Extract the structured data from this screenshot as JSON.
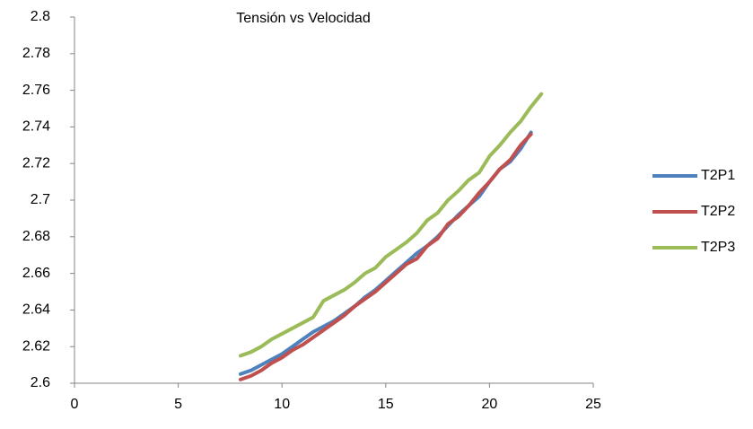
{
  "chart_data": {
    "type": "line",
    "title": "Tensión  vs Velocidad",
    "x": [
      8,
      8.5,
      9,
      9.5,
      10,
      10.5,
      11,
      11.5,
      12,
      12.5,
      13,
      13.5,
      14,
      14.5,
      15,
      15.5,
      16,
      16.5,
      17,
      17.5,
      18,
      18.5,
      19,
      19.5,
      20,
      20.5,
      21,
      21.5,
      22,
      22.5
    ],
    "series": [
      {
        "name": "T2P1",
        "color": "#4f81bd",
        "values": [
          2.605,
          2.607,
          2.61,
          2.613,
          2.616,
          2.62,
          2.624,
          2.628,
          2.631,
          2.634,
          2.638,
          2.642,
          2.647,
          2.651,
          2.656,
          2.661,
          2.666,
          2.671,
          2.675,
          2.68,
          2.686,
          2.692,
          2.697,
          2.702,
          2.71,
          2.717,
          2.721,
          2.728,
          2.737,
          null
        ]
      },
      {
        "name": "T2P2",
        "color": "#c0504d",
        "values": [
          2.602,
          2.604,
          2.607,
          2.611,
          2.614,
          2.618,
          2.621,
          2.625,
          2.629,
          2.633,
          2.637,
          2.642,
          2.646,
          2.65,
          2.655,
          2.66,
          2.665,
          2.668,
          2.675,
          2.679,
          2.687,
          2.691,
          2.697,
          2.704,
          2.71,
          2.717,
          2.722,
          2.73,
          2.736,
          null
        ]
      },
      {
        "name": "T2P3",
        "color": "#9bbb59",
        "values": [
          2.615,
          2.617,
          2.62,
          2.624,
          2.627,
          2.63,
          2.633,
          2.636,
          2.645,
          2.648,
          2.651,
          2.655,
          2.66,
          2.663,
          2.669,
          2.673,
          2.677,
          2.682,
          2.689,
          2.693,
          2.7,
          2.705,
          2.711,
          2.715,
          2.724,
          2.73,
          2.737,
          2.743,
          2.751,
          2.758
        ]
      }
    ],
    "xlim": [
      0,
      25
    ],
    "xticks": [
      0,
      5,
      10,
      15,
      20,
      25
    ],
    "ylim": [
      2.6,
      2.8
    ],
    "yticks": [
      2.6,
      2.62,
      2.64,
      2.66,
      2.68,
      2.7,
      2.72,
      2.74,
      2.76,
      2.78,
      2.8
    ],
    "grid": false,
    "legend": "right"
  }
}
